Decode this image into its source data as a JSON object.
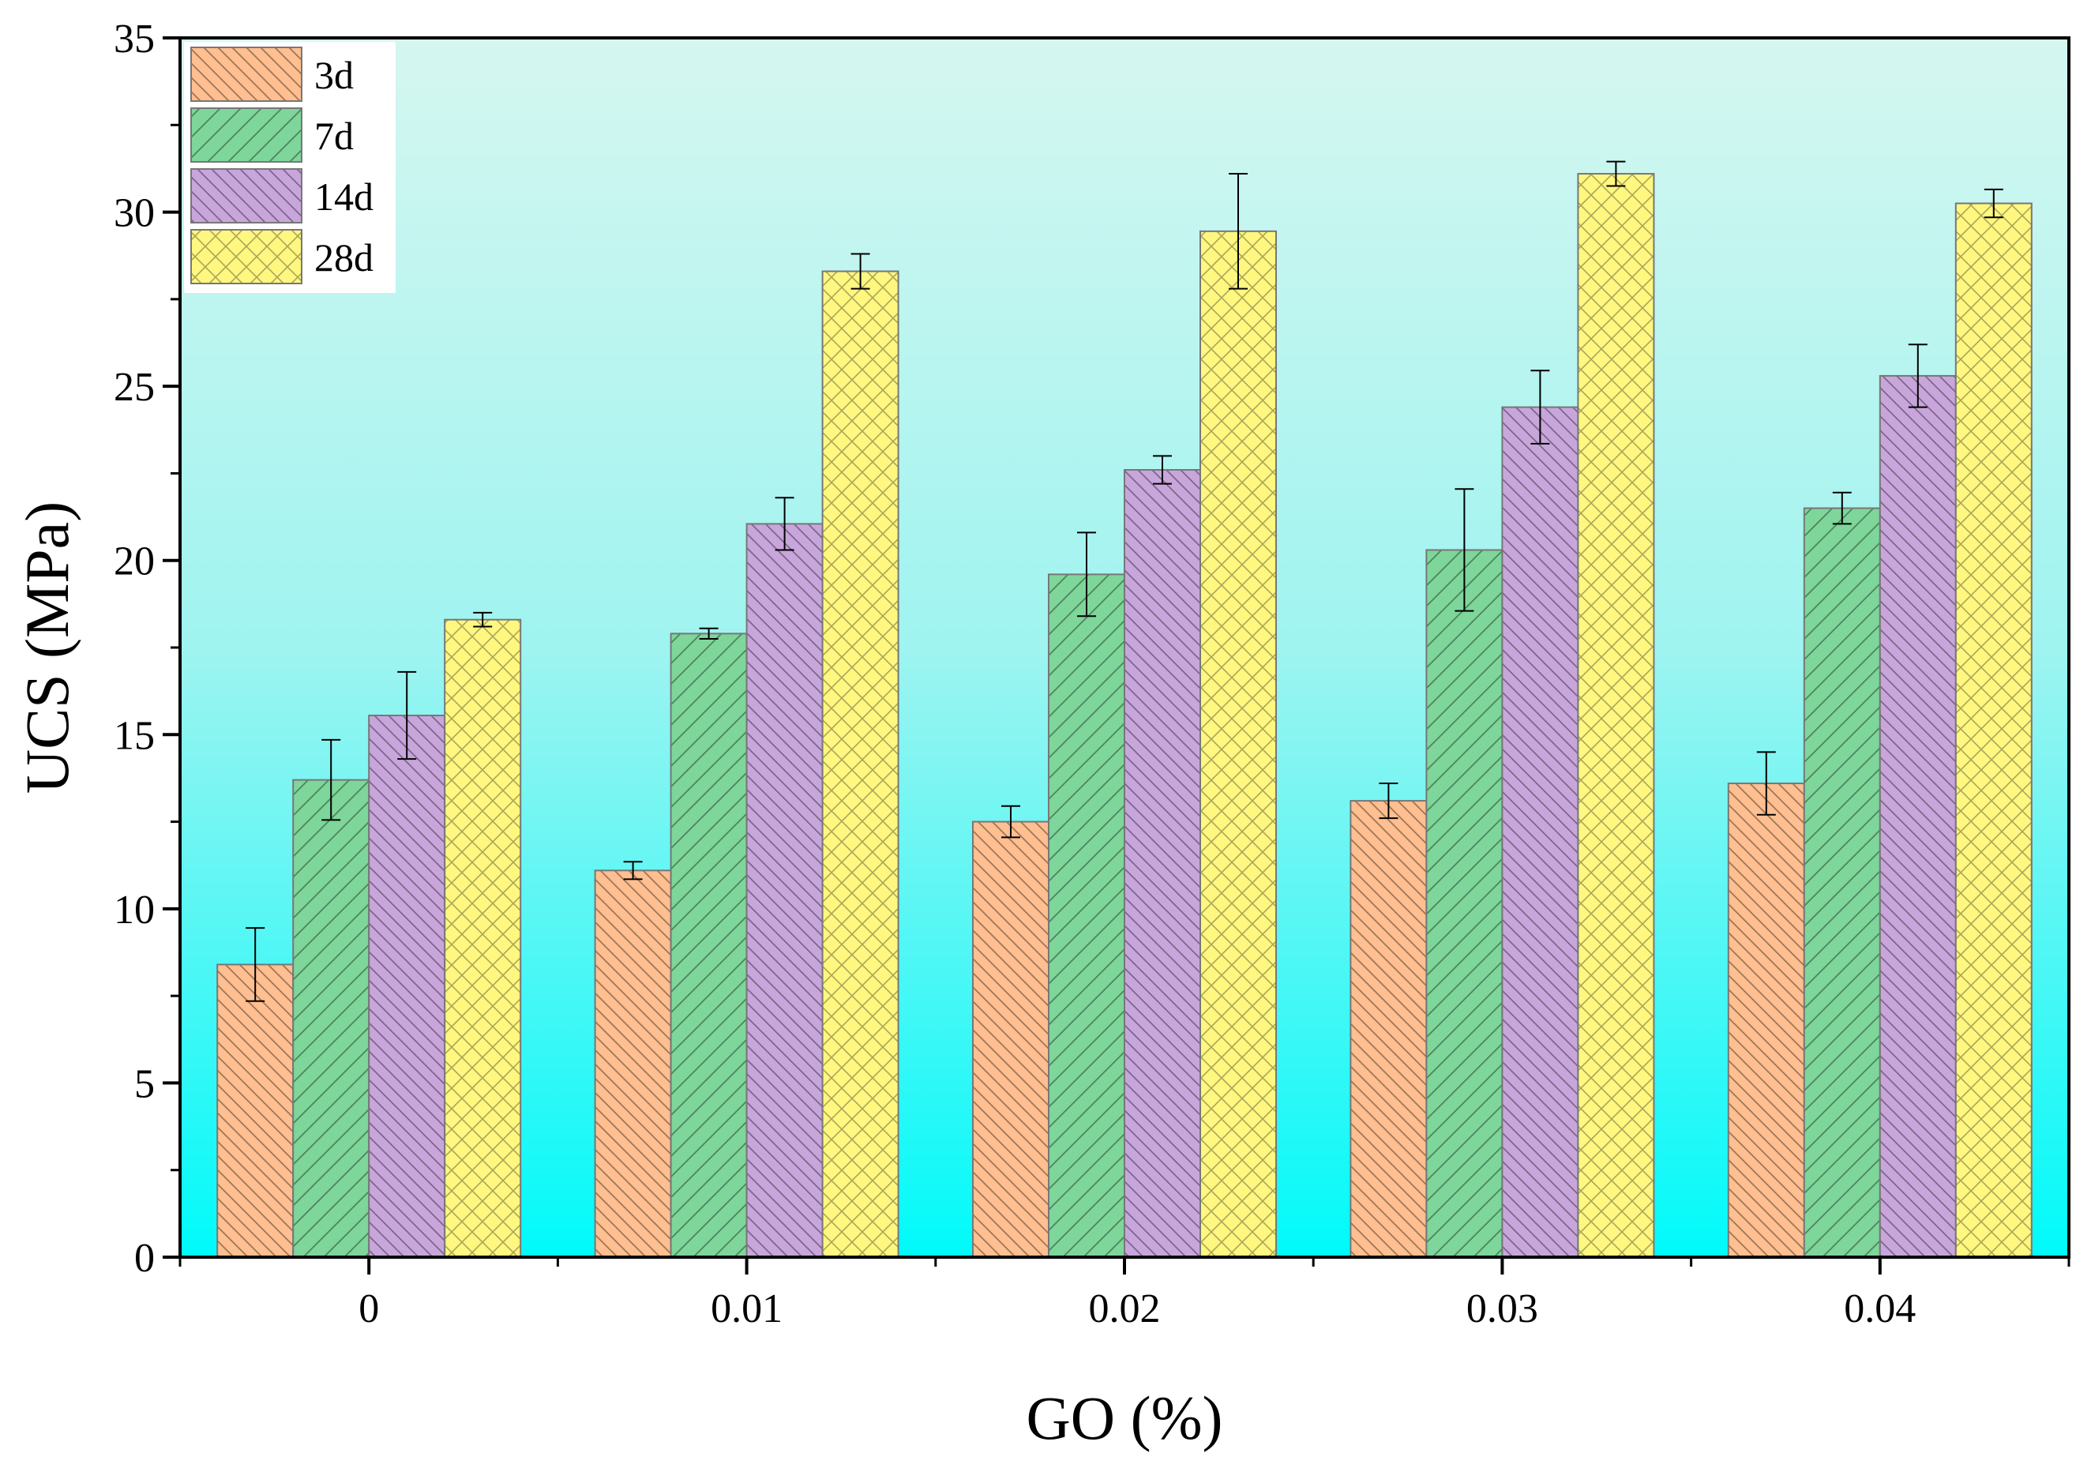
{
  "chart_data": {
    "type": "bar",
    "title": "",
    "xlabel": "GO (%)",
    "ylabel": "UCS (MPa)",
    "ylim": [
      0,
      35
    ],
    "yticks": [
      "0",
      "5",
      "10",
      "15",
      "20",
      "25",
      "30",
      "35"
    ],
    "categories": [
      "0",
      "0.01",
      "0.02",
      "0.03",
      "0.04"
    ],
    "legend_position": "top-left",
    "series": [
      {
        "name": "3d",
        "color": "#ffbf90",
        "pattern": "diag-down",
        "values": [
          8.4,
          11.1,
          12.5,
          13.1,
          13.6
        ],
        "errors": [
          1.05,
          0.25,
          0.45,
          0.5,
          0.9
        ]
      },
      {
        "name": "7d",
        "color": "#7ed69a",
        "pattern": "diag-up",
        "values": [
          13.7,
          17.9,
          19.6,
          20.3,
          21.5
        ],
        "errors": [
          1.15,
          0.15,
          1.2,
          1.75,
          0.45
        ]
      },
      {
        "name": "14d",
        "color": "#c8a6dc",
        "pattern": "diag-down",
        "values": [
          15.55,
          21.05,
          22.6,
          24.4,
          25.3
        ],
        "errors": [
          1.25,
          0.75,
          0.4,
          1.05,
          0.9
        ]
      },
      {
        "name": "28d",
        "color": "#fff780",
        "pattern": "cross",
        "values": [
          18.3,
          28.3,
          29.45,
          31.1,
          30.25
        ],
        "errors": [
          0.2,
          0.5,
          1.65,
          0.35,
          0.4
        ]
      }
    ]
  }
}
